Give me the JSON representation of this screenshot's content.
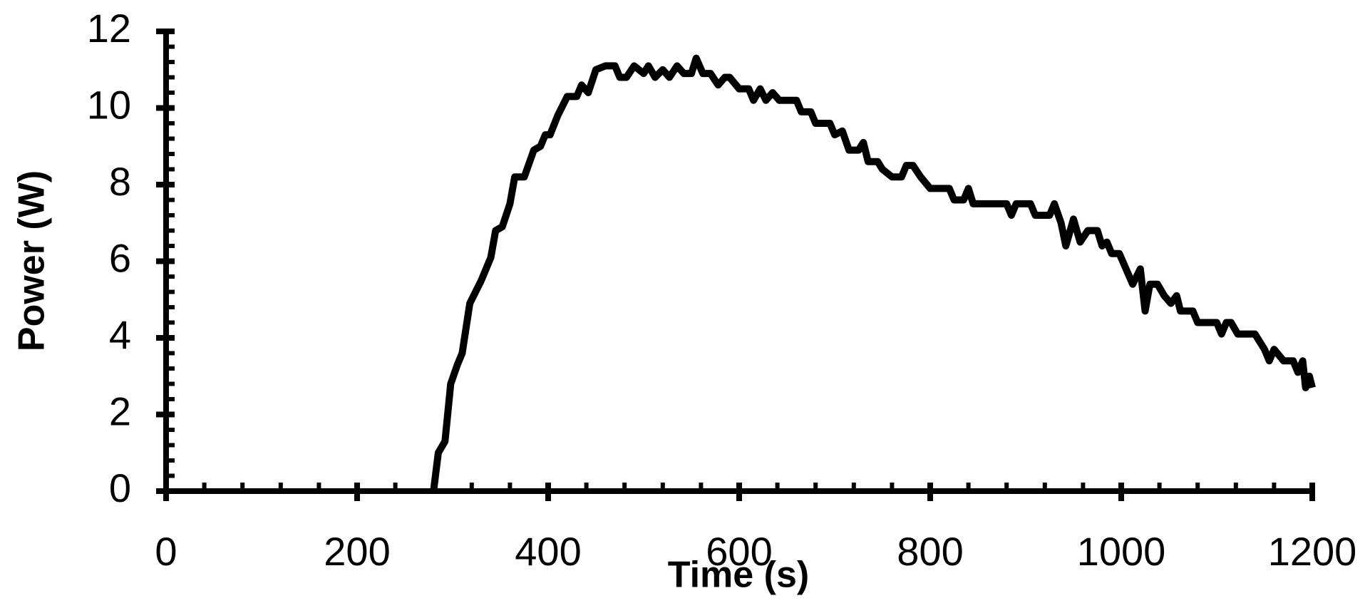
{
  "chart_data": {
    "type": "line",
    "xlabel": "Time (s)",
    "ylabel": "Power (W)",
    "color": "#000000",
    "xlim": [
      0,
      1200
    ],
    "xticks": [
      0,
      200,
      400,
      600,
      800,
      1000,
      1200
    ],
    "ylim": [
      0,
      12
    ],
    "yticks": [
      0,
      2,
      4,
      6,
      8,
      10,
      12
    ],
    "x_minor_divisions": 5,
    "y_minor_divisions": 5,
    "x": [
      280,
      285,
      292,
      298,
      305,
      310,
      318,
      330,
      340,
      345,
      352,
      360,
      365,
      375,
      385,
      392,
      397,
      402,
      410,
      420,
      430,
      435,
      442,
      450,
      460,
      470,
      475,
      482,
      490,
      500,
      505,
      512,
      520,
      527,
      535,
      542,
      550,
      555,
      562,
      570,
      578,
      585,
      590,
      600,
      610,
      615,
      622,
      628,
      635,
      642,
      660,
      665,
      675,
      680,
      695,
      700,
      708,
      715,
      725,
      730,
      735,
      745,
      750,
      760,
      770,
      775,
      782,
      790,
      800,
      820,
      825,
      835,
      840,
      845,
      880,
      885,
      890,
      905,
      910,
      925,
      930,
      937,
      942,
      950,
      957,
      965,
      975,
      980,
      985,
      990,
      998,
      1005,
      1012,
      1020,
      1025,
      1030,
      1038,
      1045,
      1052,
      1058,
      1062,
      1075,
      1080,
      1100,
      1105,
      1110,
      1115,
      1122,
      1140,
      1150,
      1155,
      1160,
      1170,
      1180,
      1185,
      1190,
      1193,
      1197,
      1200
    ],
    "values": [
      0,
      1,
      1.3,
      2.8,
      3.3,
      3.6,
      4.9,
      5.5,
      6.1,
      6.8,
      6.9,
      7.5,
      8.2,
      8.2,
      8.9,
      9.0,
      9.3,
      9.3,
      9.8,
      10.3,
      10.3,
      10.6,
      10.4,
      11.0,
      11.1,
      11.1,
      10.8,
      10.8,
      11.1,
      10.9,
      11.1,
      10.8,
      11.0,
      10.8,
      11.1,
      10.9,
      10.9,
      11.3,
      10.9,
      10.9,
      10.6,
      10.8,
      10.8,
      10.5,
      10.5,
      10.2,
      10.5,
      10.2,
      10.4,
      10.2,
      10.2,
      9.9,
      9.9,
      9.6,
      9.6,
      9.3,
      9.4,
      8.9,
      8.9,
      9.1,
      8.6,
      8.6,
      8.4,
      8.2,
      8.2,
      8.5,
      8.5,
      8.2,
      7.9,
      7.9,
      7.6,
      7.6,
      7.9,
      7.5,
      7.5,
      7.2,
      7.5,
      7.5,
      7.2,
      7.2,
      7.5,
      7.0,
      6.4,
      7.1,
      6.5,
      6.8,
      6.8,
      6.4,
      6.5,
      6.2,
      6.2,
      5.8,
      5.4,
      5.8,
      4.7,
      5.4,
      5.4,
      5.1,
      4.9,
      5.1,
      4.7,
      4.7,
      4.4,
      4.4,
      4.1,
      4.4,
      4.4,
      4.1,
      4.1,
      3.7,
      3.4,
      3.7,
      3.4,
      3.4,
      3.1,
      3.4,
      2.7,
      3.0,
      2.7
    ]
  }
}
